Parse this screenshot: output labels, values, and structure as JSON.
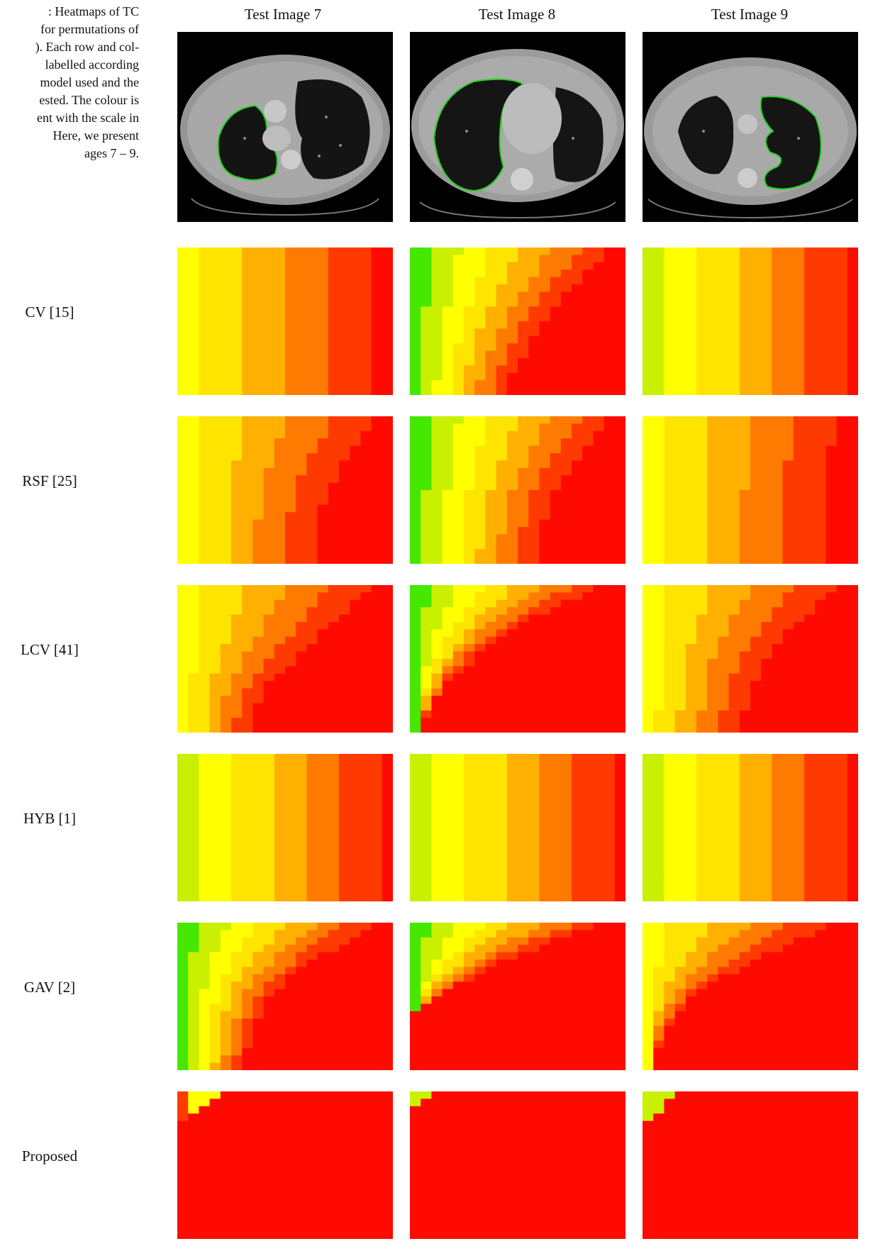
{
  "caption": {
    "lines": [
      ": Heatmaps of TC",
      "for permutations of",
      "). Each row and col-",
      "labelled according",
      "model used and the",
      "ested. The colour is",
      "ent with the scale in",
      "Here,  we  present",
      "ages 7 – 9."
    ]
  },
  "columns": [
    "Test Image 7",
    "Test Image 8",
    "Test Image 9"
  ],
  "rows": [
    "CV [15]",
    "RSF [25]",
    "LCV [41]",
    "HYB [1]",
    "GAV [2]",
    "Proposed"
  ],
  "colors": {
    "red": "#ff0a00",
    "orange_red": "#ff3a00",
    "orange": "#ff7a00",
    "amber": "#ffb000",
    "yellow": "#ffe400",
    "pale_yellow": "#ffff00",
    "yellow_green": "#c8f000",
    "green": "#44e800",
    "contour": "#22d41e"
  },
  "chart_data": [
    {
      "type": "heatmap",
      "model": "CV [15]",
      "image": "Test Image 7",
      "frontier": [
        0.98,
        0.97,
        0.97,
        0.97,
        0.97,
        0.97,
        0.97,
        0.97,
        0.97,
        0.97,
        0.97,
        0.97,
        0.97,
        0.97,
        0.97,
        0.97,
        0.97,
        0.97,
        0.97,
        0.97
      ],
      "edge": "yellow"
    },
    {
      "type": "heatmap",
      "model": "CV [15]",
      "image": "Test Image 8",
      "frontier": [
        0.96,
        0.93,
        0.9,
        0.86,
        0.82,
        0.78,
        0.75,
        0.72,
        0.69,
        0.66,
        0.63,
        0.6,
        0.58,
        0.56,
        0.54,
        0.52,
        0.5,
        0.48,
        0.46,
        0.45
      ],
      "edge": "green"
    },
    {
      "type": "heatmap",
      "model": "CV [15]",
      "image": "Test Image 9",
      "frontier": [
        1,
        1,
        1,
        1,
        1,
        1,
        1,
        1,
        1,
        1,
        1,
        1,
        1,
        1,
        1,
        1,
        1,
        1,
        1,
        1
      ],
      "edge": "none"
    },
    {
      "type": "heatmap",
      "model": "RSF [25]",
      "image": "Test Image 7",
      "frontier": [
        0.97,
        0.95,
        0.93,
        0.9,
        0.87,
        0.84,
        0.82,
        0.8,
        0.78,
        0.76,
        0.74,
        0.73,
        0.72,
        0.71,
        0.7,
        0.69,
        0.68,
        0.68,
        0.67,
        0.67
      ],
      "edge": "yellow"
    },
    {
      "type": "heatmap",
      "model": "RSF [25]",
      "image": "Test Image 8",
      "frontier": [
        0.96,
        0.93,
        0.9,
        0.87,
        0.84,
        0.81,
        0.78,
        0.76,
        0.74,
        0.72,
        0.7,
        0.68,
        0.66,
        0.65,
        0.64,
        0.63,
        0.62,
        0.61,
        0.6,
        0.6
      ],
      "edge": "green"
    },
    {
      "type": "heatmap",
      "model": "RSF [25]",
      "image": "Test Image 9",
      "frontier": [
        0.98,
        0.97,
        0.96,
        0.95,
        0.94,
        0.93,
        0.92,
        0.92,
        0.91,
        0.91,
        0.9,
        0.9,
        0.9,
        0.9,
        0.9,
        0.9,
        0.9,
        0.9,
        0.9,
        0.9
      ],
      "edge": "yellow"
    },
    {
      "type": "heatmap",
      "model": "LCV [41]",
      "image": "Test Image 7",
      "frontier": [
        0.96,
        0.92,
        0.88,
        0.84,
        0.8,
        0.76,
        0.72,
        0.68,
        0.64,
        0.6,
        0.56,
        0.52,
        0.48,
        0.44,
        0.42,
        0.4,
        0.38,
        0.36,
        0.35,
        0.34
      ],
      "edge": "yellow"
    },
    {
      "type": "heatmap",
      "model": "LCV [41]",
      "image": "Test Image 8",
      "frontier": [
        0.9,
        0.82,
        0.74,
        0.66,
        0.58,
        0.52,
        0.46,
        0.41,
        0.36,
        0.31,
        0.27,
        0.23,
        0.19,
        0.16,
        0.13,
        0.1,
        0.08,
        0.06,
        0.04,
        0.02
      ],
      "edge": "green"
    },
    {
      "type": "heatmap",
      "model": "LCV [41]",
      "image": "Test Image 9",
      "frontier": [
        0.96,
        0.92,
        0.88,
        0.84,
        0.8,
        0.76,
        0.72,
        0.69,
        0.66,
        0.63,
        0.6,
        0.58,
        0.56,
        0.54,
        0.53,
        0.52,
        0.51,
        0.5,
        0.5,
        0.5
      ],
      "edge": "yellow"
    },
    {
      "type": "heatmap",
      "model": "HYB [1]",
      "image": "Test Image 7",
      "frontier": [
        1,
        1,
        1,
        1,
        1,
        1,
        1,
        1,
        1,
        1,
        1,
        1,
        1,
        1,
        1,
        1,
        1,
        1,
        1,
        1
      ],
      "edge": "none"
    },
    {
      "type": "heatmap",
      "model": "HYB [1]",
      "image": "Test Image 8",
      "frontier": [
        1,
        1,
        1,
        1,
        1,
        1,
        1,
        1,
        1,
        1,
        1,
        1,
        1,
        1,
        1,
        1,
        1,
        1,
        1,
        1
      ],
      "edge": "none"
    },
    {
      "type": "heatmap",
      "model": "HYB [1]",
      "image": "Test Image 9",
      "frontier": [
        1,
        1,
        1,
        1,
        1,
        1,
        1,
        1,
        1,
        1,
        1,
        1,
        1,
        1,
        1,
        1,
        1,
        1,
        1,
        1
      ],
      "edge": "none"
    },
    {
      "type": "heatmap",
      "model": "GAV [2]",
      "image": "Test Image 7",
      "frontier": [
        0.94,
        0.88,
        0.82,
        0.76,
        0.7,
        0.64,
        0.58,
        0.53,
        0.49,
        0.46,
        0.43,
        0.41,
        0.39,
        0.37,
        0.35,
        0.34,
        0.33,
        0.32,
        0.31,
        0.3
      ],
      "edge": "green"
    },
    {
      "type": "heatmap",
      "model": "GAV [2]",
      "image": "Test Image 8",
      "frontier": [
        0.9,
        0.8,
        0.7,
        0.6,
        0.5,
        0.42,
        0.34,
        0.27,
        0.2,
        0.14,
        0.08,
        0.03,
        0,
        0,
        0,
        0,
        0,
        0,
        0,
        0
      ],
      "edge": "green"
    },
    {
      "type": "heatmap",
      "model": "GAV [2]",
      "image": "Test Image 9",
      "frontier": [
        0.92,
        0.84,
        0.76,
        0.68,
        0.6,
        0.52,
        0.45,
        0.38,
        0.32,
        0.27,
        0.22,
        0.18,
        0.15,
        0.12,
        0.1,
        0.08,
        0.06,
        0.05,
        0.04,
        0.03
      ],
      "edge": "yellow"
    },
    {
      "type": "heatmap",
      "model": "Proposed",
      "image": "Test Image 7",
      "frontier": [
        0.2,
        0.14,
        0.08,
        0.04,
        0,
        0,
        0,
        0,
        0,
        0,
        0,
        0,
        0,
        0,
        0,
        0,
        0,
        0,
        0,
        0
      ],
      "edge": "red",
      "center": "pale_yellow"
    },
    {
      "type": "heatmap",
      "model": "Proposed",
      "image": "Test Image 8",
      "frontier": [
        0.06,
        0.03,
        0,
        0,
        0,
        0,
        0,
        0,
        0,
        0,
        0,
        0,
        0,
        0,
        0,
        0,
        0,
        0,
        0,
        0
      ],
      "edge": "green",
      "center": "pale_yellow"
    },
    {
      "type": "heatmap",
      "model": "Proposed",
      "image": "Test Image 9",
      "frontier": [
        0.14,
        0.1,
        0.06,
        0.03,
        0,
        0,
        0,
        0,
        0,
        0,
        0,
        0,
        0,
        0,
        0,
        0,
        0,
        0,
        0,
        0
      ],
      "edge": "green",
      "center": "pale_yellow"
    }
  ]
}
